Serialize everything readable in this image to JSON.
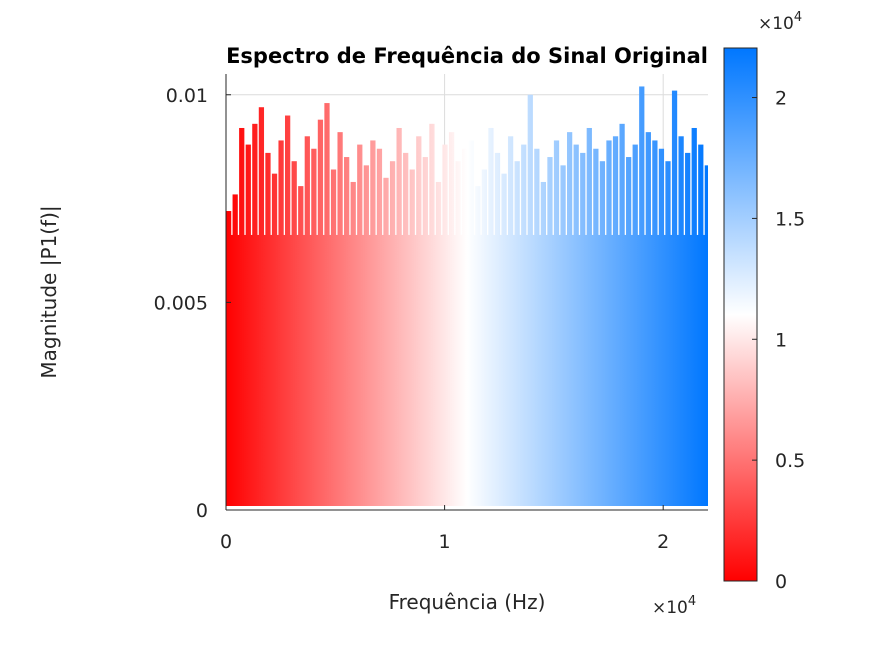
{
  "chart_data": {
    "type": "bar",
    "title": "Espectro de Frequência do Sinal Original",
    "xlabel": "Frequência (Hz)",
    "ylabel": "Magnitude |P1(f)|",
    "xlim": [
      0,
      22050
    ],
    "ylim": [
      0,
      0.0105
    ],
    "x_ticks": [
      0,
      10000,
      20000
    ],
    "x_tick_labels": [
      "0",
      "1",
      "2"
    ],
    "x_exponent": {
      "base": "×10",
      "power": "4"
    },
    "y_ticks": [
      0,
      0.005,
      0.01
    ],
    "y_tick_labels": [
      "0",
      "0.005",
      "0.01"
    ],
    "grid": true,
    "colorbar": {
      "colors": [
        "#ff0000",
        "#ffffff",
        "#0077ff"
      ],
      "lim": [
        0,
        22050
      ],
      "ticks": [
        0,
        5000,
        10000,
        15000,
        20000
      ],
      "tick_labels": [
        "0",
        "0.5",
        "1",
        "1.5",
        "2"
      ],
      "exponent": {
        "base": "×10",
        "power": "4"
      }
    },
    "series": [
      {
        "x": [
          0,
          300,
          600,
          900,
          1200,
          1500,
          1800,
          2100,
          2400,
          2700,
          3000,
          3300,
          3600,
          3900,
          4200,
          4500,
          4800,
          5100,
          5400,
          5700,
          6000,
          6300,
          6600,
          6900,
          7200,
          7500,
          7800,
          8100,
          8400,
          8700,
          9000,
          9300,
          9600,
          9900,
          10200,
          10500,
          10800,
          11100,
          11400,
          11700,
          12000,
          12300,
          12600,
          12900,
          13200,
          13500,
          13800,
          14100,
          14400,
          14700,
          15000,
          15300,
          15600,
          15900,
          16200,
          16500,
          16800,
          17100,
          17400,
          17700,
          18000,
          18300,
          18600,
          18900,
          19200,
          19500,
          19800,
          20100,
          20400,
          20700,
          21000,
          21300,
          21600,
          21900
        ],
        "values": [
          0.0072,
          0.0076,
          0.0092,
          0.0088,
          0.0093,
          0.0097,
          0.0086,
          0.0081,
          0.0089,
          0.0095,
          0.0084,
          0.0078,
          0.009,
          0.0087,
          0.0094,
          0.0098,
          0.0082,
          0.0091,
          0.0085,
          0.0079,
          0.0088,
          0.0083,
          0.0089,
          0.0087,
          0.008,
          0.0084,
          0.0092,
          0.0086,
          0.0082,
          0.009,
          0.0085,
          0.0093,
          0.0079,
          0.0088,
          0.0091,
          0.0084,
          0.0087,
          0.0089,
          0.0078,
          0.0082,
          0.0092,
          0.0086,
          0.0081,
          0.009,
          0.0084,
          0.0088,
          0.01,
          0.0087,
          0.0079,
          0.0085,
          0.0089,
          0.0083,
          0.0091,
          0.0088,
          0.0086,
          0.0092,
          0.0087,
          0.0084,
          0.0089,
          0.009,
          0.0093,
          0.0085,
          0.0088,
          0.0102,
          0.0091,
          0.0089,
          0.0087,
          0.0084,
          0.0101,
          0.009,
          0.0086,
          0.0092,
          0.0088,
          0.0083
        ]
      }
    ]
  }
}
